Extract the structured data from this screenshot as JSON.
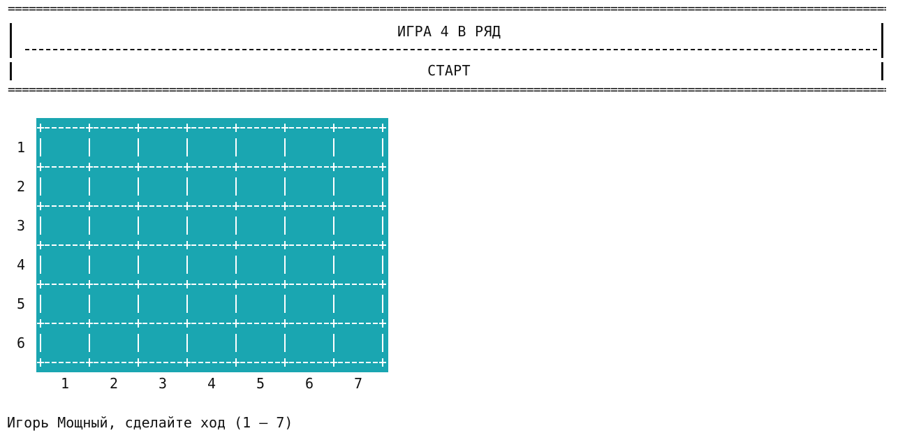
{
  "header": {
    "rule_text": "==============================================================================================================================================================",
    "title": "ИГРА 4 В РЯД",
    "subtitle": "СТАРТ"
  },
  "board": {
    "rows": 6,
    "cols": 7,
    "color": "#1aa6b1",
    "line_color": "#ffffff",
    "row_labels": [
      "1",
      "2",
      "3",
      "4",
      "5",
      "6"
    ],
    "col_labels": [
      "1",
      "2",
      "3",
      "4",
      "5",
      "6",
      "7"
    ]
  },
  "prompt": "Игорь Мощный, сделайте ход (1 – 7)"
}
